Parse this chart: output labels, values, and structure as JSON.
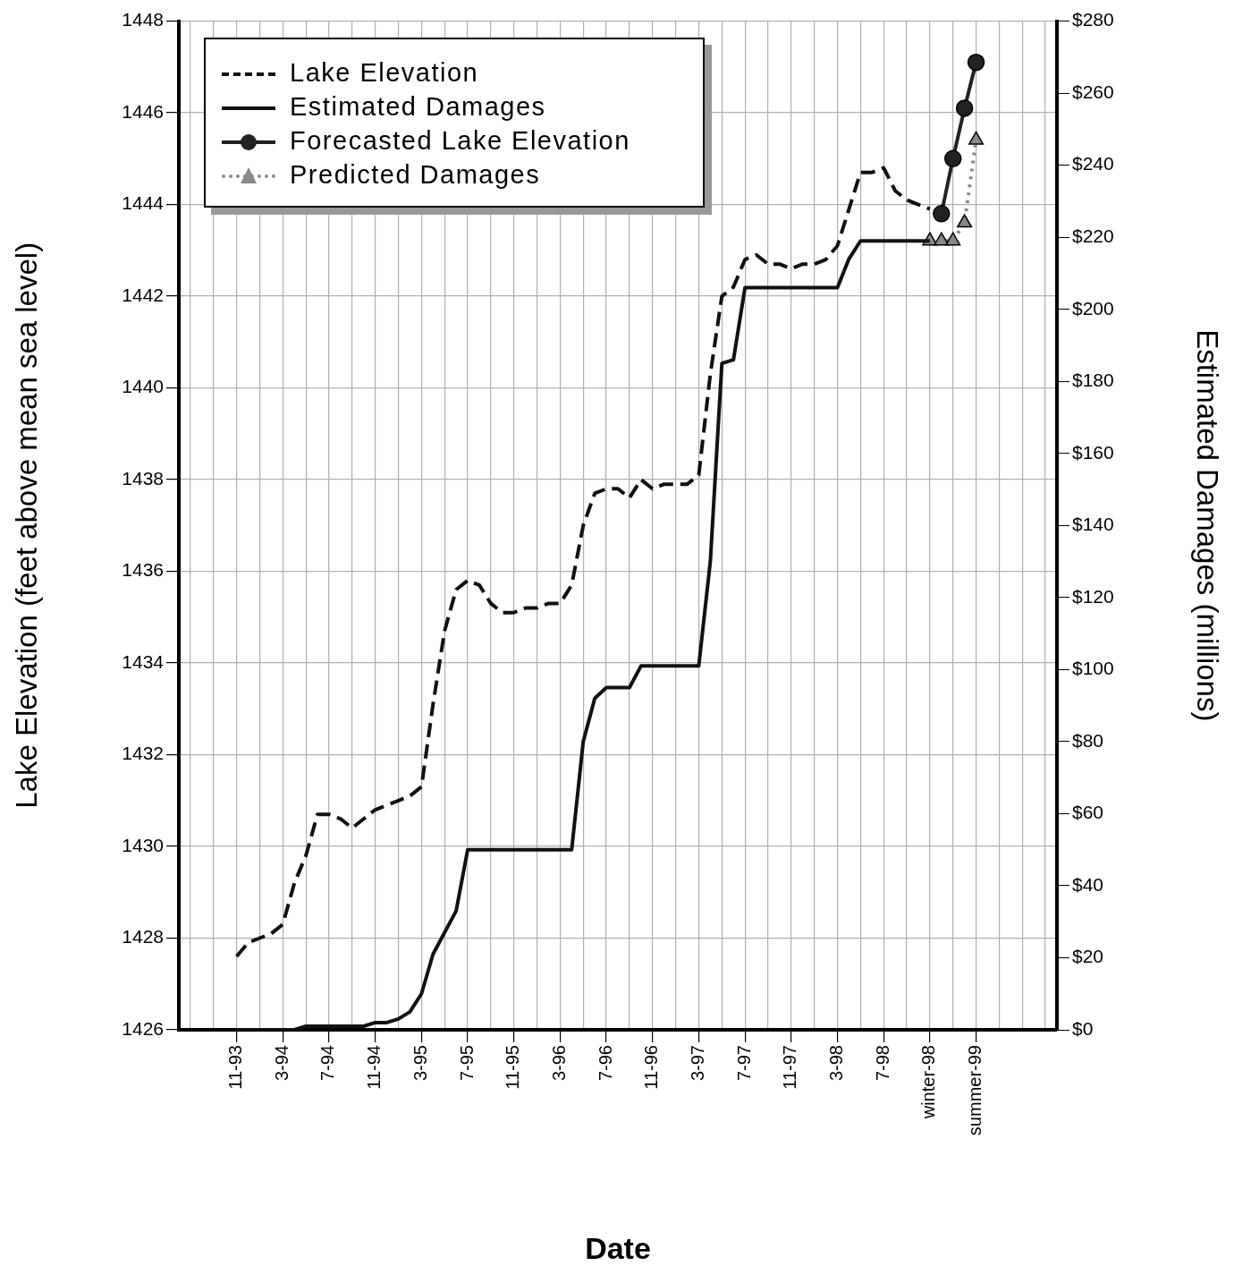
{
  "chart_data": {
    "type": "line",
    "xlabel": "Date",
    "ylabel": "Lake Elevation (feet above mean sea level)",
    "y2label": "Estimated Damages (millions)",
    "categories": [
      null,
      null,
      null,
      null,
      null,
      "11-93",
      null,
      null,
      null,
      "3-94",
      null,
      null,
      null,
      "7-94",
      null,
      null,
      null,
      "11-94",
      null,
      null,
      null,
      "3-95",
      null,
      null,
      null,
      "7-95",
      null,
      null,
      null,
      "11-95",
      null,
      null,
      null,
      "3-96",
      null,
      null,
      null,
      "7-96",
      null,
      null,
      null,
      "11-96",
      null,
      null,
      null,
      "3-97",
      null,
      null,
      null,
      "7-97",
      null,
      null,
      null,
      "11-97",
      null,
      null,
      null,
      "3-98",
      null,
      null,
      null,
      "7-98",
      null,
      null,
      null,
      "winter-98",
      null,
      null,
      null,
      "summer-99",
      null,
      null,
      null,
      null,
      null,
      null,
      null
    ],
    "series": [
      {
        "name": "Lake Elevation",
        "color": "#111111",
        "line_style": "dashed",
        "marker": "none",
        "values": [
          null,
          null,
          null,
          null,
          null,
          1427.6,
          1427.9,
          1428.0,
          1428.1,
          1428.3,
          1429.2,
          1429.8,
          1430.7,
          1430.7,
          1430.6,
          1430.4,
          1430.6,
          1430.8,
          1430.9,
          1431.0,
          1431.1,
          1431.3,
          1433.1,
          1434.7,
          1435.6,
          1435.8,
          1435.7,
          1435.3,
          1435.1,
          1435.1,
          1435.2,
          1435.2,
          1435.3,
          1435.3,
          1435.7,
          1437.0,
          1437.7,
          1437.8,
          1437.8,
          1437.6,
          1438.0,
          1437.8,
          1437.9,
          1437.9,
          1437.9,
          1438.1,
          1440.3,
          1442.0,
          1442.2,
          1442.8,
          1442.9,
          1442.7,
          1442.7,
          1442.6,
          1442.7,
          1442.7,
          1442.8,
          1443.1,
          1443.9,
          1444.7,
          1444.7,
          1444.8,
          1444.3,
          1444.1,
          1444.0,
          1443.9,
          null,
          null,
          null,
          null,
          null,
          null,
          null,
          null,
          null,
          null,
          null
        ]
      },
      {
        "name": "Estimated Damages",
        "color": "#111111",
        "line_style": "solid",
        "marker": "none",
        "axis": "y2",
        "values": [
          null,
          null,
          null,
          null,
          null,
          0,
          0,
          0,
          0,
          0,
          0,
          1,
          1,
          1,
          1,
          1,
          1,
          2,
          2,
          3,
          5,
          10,
          21,
          27,
          33,
          50,
          50,
          50,
          50,
          50,
          50,
          50,
          50,
          50,
          50,
          80,
          92,
          95,
          95,
          95,
          101,
          101,
          101,
          101,
          101,
          101,
          130,
          185,
          186,
          206,
          206,
          206,
          206,
          206,
          206,
          206,
          206,
          206,
          214,
          219,
          219,
          219,
          219,
          219,
          219,
          219,
          null,
          null,
          null,
          null,
          null,
          null,
          null,
          null,
          null,
          null,
          null
        ]
      },
      {
        "name": "Forecasted Lake Elevation",
        "color": "#222222",
        "line_style": "solid",
        "marker": "circle",
        "values": [
          null,
          null,
          null,
          null,
          null,
          null,
          null,
          null,
          null,
          null,
          null,
          null,
          null,
          null,
          null,
          null,
          null,
          null,
          null,
          null,
          null,
          null,
          null,
          null,
          null,
          null,
          null,
          null,
          null,
          null,
          null,
          null,
          null,
          null,
          null,
          null,
          null,
          null,
          null,
          null,
          null,
          null,
          null,
          null,
          null,
          null,
          null,
          null,
          null,
          null,
          null,
          null,
          null,
          null,
          null,
          null,
          null,
          null,
          null,
          null,
          null,
          null,
          null,
          null,
          null,
          null,
          1443.8,
          1445.0,
          1446.1,
          1447.1,
          null,
          null,
          null,
          null,
          null,
          null,
          null
        ]
      },
      {
        "name": "Predicted Damages",
        "color": "#888888",
        "line_style": "dotted",
        "marker": "triangle",
        "axis": "y2",
        "values": [
          null,
          null,
          null,
          null,
          null,
          null,
          null,
          null,
          null,
          null,
          null,
          null,
          null,
          null,
          null,
          null,
          null,
          null,
          null,
          null,
          null,
          null,
          null,
          null,
          null,
          null,
          null,
          null,
          null,
          null,
          null,
          null,
          null,
          null,
          null,
          null,
          null,
          null,
          null,
          null,
          null,
          null,
          null,
          null,
          null,
          null,
          null,
          null,
          null,
          null,
          null,
          null,
          null,
          null,
          null,
          null,
          null,
          null,
          null,
          null,
          null,
          null,
          null,
          null,
          null,
          219,
          219,
          219,
          224,
          247,
          null,
          null,
          null,
          null,
          null,
          null,
          null
        ]
      }
    ],
    "ylim": [
      1426,
      1448
    ],
    "yticks": [
      1426,
      1428,
      1430,
      1432,
      1434,
      1436,
      1438,
      1440,
      1442,
      1444,
      1446,
      1448
    ],
    "y2lim": [
      0,
      280
    ],
    "y2ticks": [
      {
        "value": 0,
        "label": "$0"
      },
      {
        "value": 20,
        "label": "$20"
      },
      {
        "value": 40,
        "label": "$40"
      },
      {
        "value": 60,
        "label": "$60"
      },
      {
        "value": 80,
        "label": "$80"
      },
      {
        "value": 100,
        "label": "$100"
      },
      {
        "value": 120,
        "label": "$120"
      },
      {
        "value": 140,
        "label": "$140"
      },
      {
        "value": 160,
        "label": "$160"
      },
      {
        "value": 180,
        "label": "$180"
      },
      {
        "value": 200,
        "label": "$200"
      },
      {
        "value": 220,
        "label": "$220"
      },
      {
        "value": 240,
        "label": "$240"
      },
      {
        "value": 260,
        "label": "$260"
      },
      {
        "value": 280,
        "label": "$280"
      }
    ],
    "grid": true,
    "legend": "top left"
  }
}
